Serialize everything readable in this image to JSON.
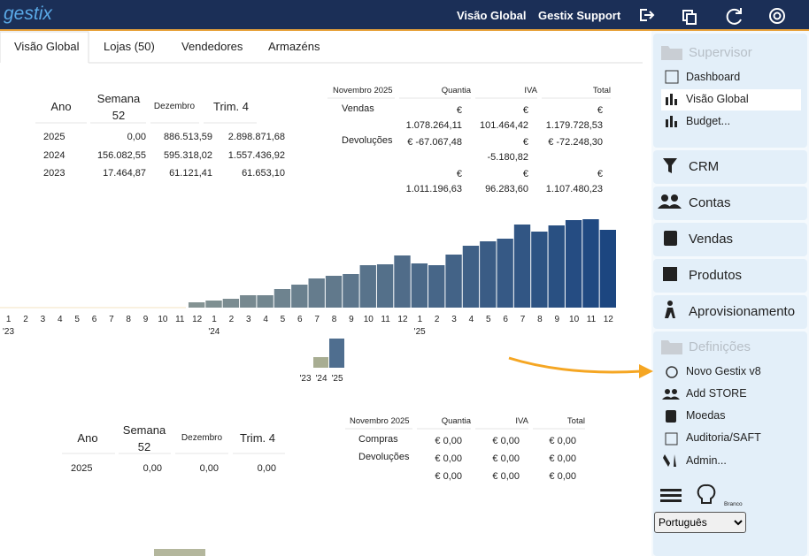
{
  "header": {
    "logo": "gestix",
    "links": [
      "Visão Global",
      "Gestix Support"
    ]
  },
  "tabs": [
    "Visão Global",
    "Lojas (50)",
    "Vendedores",
    "Armazéns"
  ],
  "summary": {
    "headers": [
      "Ano",
      "Semana 52",
      "Dezembro",
      "Trim. 4"
    ],
    "rows": [
      [
        "2025",
        "0,00",
        "886.513,59",
        "2.898.871,68"
      ],
      [
        "2024",
        "156.082,55",
        "595.318,02",
        "1.557.436,92"
      ],
      [
        "2023",
        "17.464,87",
        "61.121,41",
        "61.653,10"
      ]
    ]
  },
  "month": {
    "headers": [
      "Novembro 2025",
      "Quantia",
      "IVA",
      "Total"
    ],
    "rows": [
      [
        "Vendas",
        "€ 1.078.264,11",
        "€ 101.464,42",
        "€ 1.179.728,53"
      ],
      [
        "Devoluções",
        "€ -67.067,48",
        "€ -5.180,82",
        "€ -72.248,30"
      ]
    ],
    "totals": [
      "€ 1.011.196,63",
      "€ 96.283,60",
      "€ 1.107.480,23"
    ]
  },
  "chart_data": [
    {
      "type": "bar",
      "categories": [
        "1",
        "2",
        "3",
        "4",
        "5",
        "6",
        "7",
        "8",
        "9",
        "10",
        "11",
        "12",
        "1",
        "2",
        "3",
        "4",
        "5",
        "6",
        "7",
        "8",
        "9",
        "10",
        "11",
        "12",
        "1",
        "2",
        "3",
        "4",
        "5",
        "6",
        "7",
        "8",
        "9",
        "10",
        "11",
        "12"
      ],
      "year_labels": [
        "'23",
        "'24",
        "'25"
      ],
      "values": [
        0,
        0,
        0,
        0,
        0,
        0,
        0,
        0,
        0,
        0,
        0,
        6,
        8,
        10,
        14,
        14,
        21,
        26,
        33,
        36,
        38,
        48,
        49,
        59,
        50,
        48,
        60,
        70,
        75,
        78,
        94,
        86,
        93,
        99,
        100,
        88
      ],
      "color_range": [
        "#b3b69b",
        "#1c4680"
      ]
    },
    {
      "type": "bar",
      "categories": [
        "'23",
        "'24",
        "'25"
      ],
      "values": [
        0,
        12,
        33
      ],
      "colors": [
        "#b3b69b",
        "#a8ad92",
        "#4f6e8f"
      ]
    },
    {
      "type": "bar",
      "categories": [
        null
      ],
      "values": [
        8
      ],
      "colors": [
        "#b4b79d"
      ]
    }
  ],
  "summary2": {
    "headers": [
      "Ano",
      "Semana 52",
      "Dezembro",
      "Trim. 4"
    ],
    "rows": [
      [
        "2025",
        "0,00",
        "0,00",
        "0,00"
      ]
    ]
  },
  "month2": {
    "headers": [
      "Novembro 2025",
      "Quantia",
      "IVA",
      "Total"
    ],
    "rows": [
      [
        "Compras",
        "€ 0,00",
        "€ 0,00",
        "€ 0,00"
      ],
      [
        "Devoluções",
        "€ 0,00",
        "€ 0,00",
        "€ 0,00"
      ]
    ],
    "totals": [
      "€ 0,00",
      "€ 0,00",
      "€ 0,00"
    ]
  },
  "sidebar": {
    "supervisor": {
      "title": "Supervisor",
      "items": [
        "Dashboard",
        "Visão Global",
        "Budget..."
      ]
    },
    "modules": [
      "CRM",
      "Contas",
      "Vendas",
      "Produtos",
      "Aprovisionamento"
    ],
    "settings": {
      "title": "Definições",
      "items": [
        "Novo Gestix v8",
        "Add STORE",
        "Moedas",
        "Auditoria/SAFT",
        "Admin..."
      ]
    },
    "theme": "Branco",
    "language": "Português"
  }
}
